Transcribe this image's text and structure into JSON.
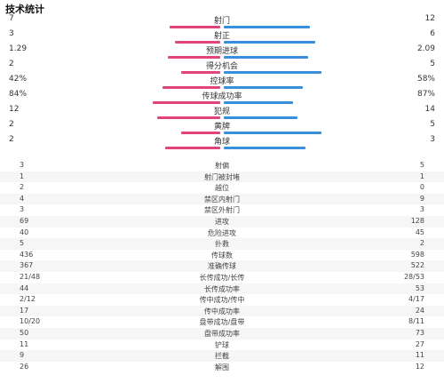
{
  "title": "技术统计",
  "colors": {
    "home": "#e0447a",
    "away": "#3a8fdc"
  },
  "bar_stats": [
    {
      "label": "射门",
      "home": "7",
      "away": "12",
      "home_ratio": 0.368,
      "away_ratio": 0.632
    },
    {
      "label": "射正",
      "home": "3",
      "away": "6",
      "home_ratio": 0.333,
      "away_ratio": 0.667
    },
    {
      "label": "预期进球",
      "home": "1.29",
      "away": "2.09",
      "home_ratio": 0.382,
      "away_ratio": 0.618
    },
    {
      "label": "得分机会",
      "home": "2",
      "away": "5",
      "home_ratio": 0.286,
      "away_ratio": 0.714
    },
    {
      "label": "控球率",
      "home": "42%",
      "away": "58%",
      "home_ratio": 0.42,
      "away_ratio": 0.58
    },
    {
      "label": "传球成功率",
      "home": "84%",
      "away": "87%",
      "home_ratio": 0.491,
      "away_ratio": 0.509
    },
    {
      "label": "犯规",
      "home": "12",
      "away": "14",
      "home_ratio": 0.462,
      "away_ratio": 0.538
    },
    {
      "label": "黄牌",
      "home": "2",
      "away": "5",
      "home_ratio": 0.286,
      "away_ratio": 0.714
    },
    {
      "label": "角球",
      "home": "2",
      "away": "3",
      "home_ratio": 0.4,
      "away_ratio": 0.6
    }
  ],
  "table_stats": [
    {
      "label": "射偏",
      "home": "3",
      "away": "5"
    },
    {
      "label": "射门被封堵",
      "home": "1",
      "away": "1"
    },
    {
      "label": "越位",
      "home": "2",
      "away": "0"
    },
    {
      "label": "禁区内射门",
      "home": "4",
      "away": "9"
    },
    {
      "label": "禁区外射门",
      "home": "3",
      "away": "3"
    },
    {
      "label": "进攻",
      "home": "69",
      "away": "128"
    },
    {
      "label": "危险进攻",
      "home": "40",
      "away": "45"
    },
    {
      "label": "扑救",
      "home": "5",
      "away": "2"
    },
    {
      "label": "传球数",
      "home": "436",
      "away": "598"
    },
    {
      "label": "准确传球",
      "home": "367",
      "away": "522"
    },
    {
      "label": "长传成功/长传",
      "home": "21/48",
      "away": "28/53"
    },
    {
      "label": "长传成功率",
      "home": "44",
      "away": "53"
    },
    {
      "label": "传中成功/传中",
      "home": "2/12",
      "away": "4/17"
    },
    {
      "label": "传中成功率",
      "home": "17",
      "away": "24"
    },
    {
      "label": "盘带成功/盘带",
      "home": "10/20",
      "away": "8/11"
    },
    {
      "label": "盘带成功率",
      "home": "50",
      "away": "73"
    },
    {
      "label": "铲球",
      "home": "11",
      "away": "27"
    },
    {
      "label": "拦截",
      "home": "9",
      "away": "11"
    },
    {
      "label": "解围",
      "home": "26",
      "away": "12"
    }
  ]
}
